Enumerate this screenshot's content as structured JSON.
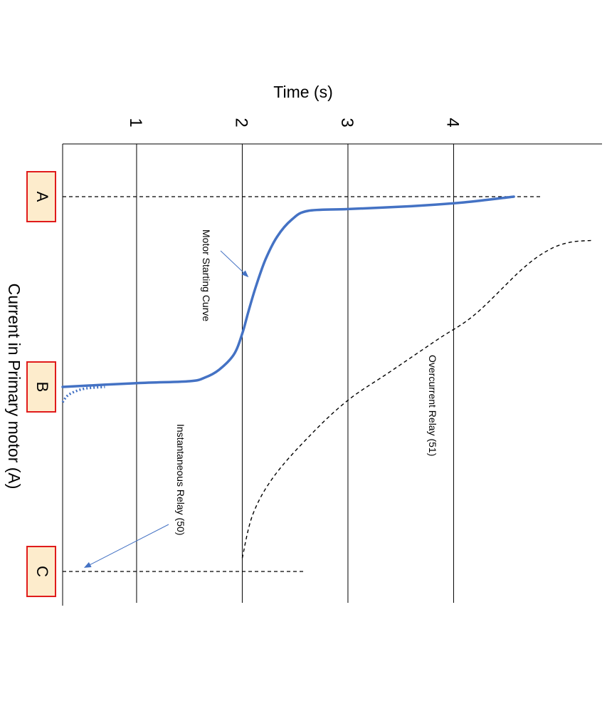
{
  "chart_data": {
    "type": "line",
    "orientation": "rotated 90° clockwise",
    "title": "",
    "time_axis": {
      "label": "Time (s)",
      "ticks": [
        1,
        2,
        3,
        4
      ],
      "range": [
        0.3,
        5.4
      ]
    },
    "current_axis": {
      "label": "Current in Primary motor (A)",
      "markers": [
        "A",
        "B",
        "C"
      ]
    },
    "series": [
      {
        "name": "Motor Starting Curve",
        "style": "solid",
        "color": "#4472c4",
        "points": [
          {
            "t": 0.3,
            "i": 0.0
          },
          {
            "t": 1.0,
            "i": 0.02
          },
          {
            "t": 1.5,
            "i": 0.03
          },
          {
            "t": 1.65,
            "i": 0.05
          },
          {
            "t": 1.78,
            "i": 0.09
          },
          {
            "t": 1.92,
            "i": 0.17
          },
          {
            "t": 2.0,
            "i": 0.28
          },
          {
            "t": 2.06,
            "i": 0.4
          },
          {
            "t": 2.13,
            "i": 0.53
          },
          {
            "t": 2.22,
            "i": 0.67
          },
          {
            "t": 2.33,
            "i": 0.79
          },
          {
            "t": 2.47,
            "i": 0.88
          },
          {
            "t": 2.62,
            "i": 0.925
          },
          {
            "t": 3.0,
            "i": 0.935
          },
          {
            "t": 3.6,
            "i": 0.95
          },
          {
            "t": 4.1,
            "i": 0.97
          },
          {
            "t": 4.57,
            "i": 1.0
          }
        ],
        "tail_dotted": [
          {
            "t": 0.3,
            "i": -0.08
          },
          {
            "t": 0.36,
            "i": -0.04
          },
          {
            "t": 0.5,
            "i": -0.01
          },
          {
            "t": 0.7,
            "i": 0.0
          }
        ]
      },
      {
        "name": "Overcurrent Relay (51)",
        "style": "dashed",
        "color": "#000000",
        "points": [
          {
            "t": 2.0,
            "i": -0.9
          },
          {
            "t": 2.1,
            "i": -0.67
          },
          {
            "t": 2.3,
            "i": -0.47
          },
          {
            "t": 2.65,
            "i": -0.25
          },
          {
            "t": 3.0,
            "i": -0.07
          },
          {
            "t": 3.4,
            "i": 0.08
          },
          {
            "t": 3.85,
            "i": 0.25
          },
          {
            "t": 4.2,
            "i": 0.38
          },
          {
            "t": 4.65,
            "i": 0.62
          },
          {
            "t": 4.9,
            "i": 0.72
          },
          {
            "t": 5.1,
            "i": 0.76
          },
          {
            "t": 5.3,
            "i": 0.77
          }
        ]
      },
      {
        "name": "Instantaneous Relay (50)",
        "style": "dashed",
        "color": "#000000",
        "points": [
          {
            "t": 0.3,
            "i": -0.97
          },
          {
            "t": 2.6,
            "i": -0.97
          }
        ]
      }
    ],
    "annotations": [
      {
        "text": "Motor Starting Curve",
        "arrow_to": {
          "t": 2.05,
          "i": 0.6
        }
      },
      {
        "text": "Overcurrent Relay (51)"
      },
      {
        "text": "Instantaneous Relay (50)",
        "arrow_to": {
          "t": 0.5,
          "i": -0.97
        }
      }
    ]
  }
}
